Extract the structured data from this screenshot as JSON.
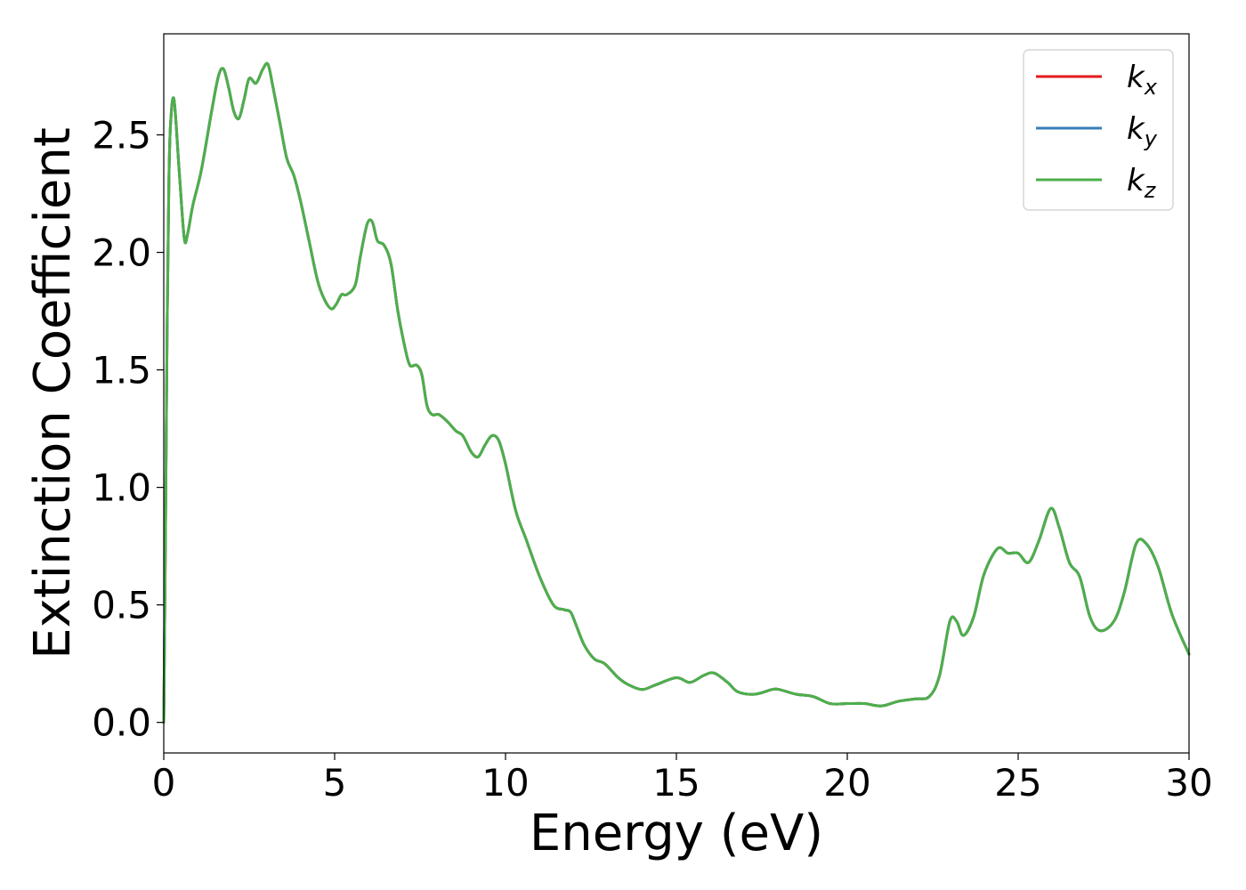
{
  "chart_data": {
    "type": "line",
    "title": "",
    "xlabel": "Energy (eV)",
    "ylabel": "Extinction Coefficient",
    "xlim": [
      0,
      30
    ],
    "ylim": [
      -0.13,
      2.93
    ],
    "xticks": [
      0,
      5,
      10,
      15,
      20,
      25,
      30
    ],
    "xtick_labels": [
      "0",
      "5",
      "10",
      "15",
      "20",
      "25",
      "30"
    ],
    "yticks": [
      0.0,
      0.5,
      1.0,
      1.5,
      2.0,
      2.5
    ],
    "ytick_labels": [
      "0.0",
      "0.5",
      "1.0",
      "1.5",
      "2.0",
      "2.5"
    ],
    "grid": false,
    "legend_position": "top-right",
    "series": [
      {
        "name": "k",
        "subscript": "x",
        "color": "#e41a1c",
        "x": [
          0,
          0.05,
          0.1,
          0.15,
          0.2,
          0.3,
          0.45,
          0.6,
          0.7,
          0.85,
          1.1,
          1.4,
          1.6,
          1.75,
          1.9,
          2.05,
          2.2,
          2.35,
          2.5,
          2.7,
          2.9,
          3.05,
          3.2,
          3.4,
          3.6,
          3.8,
          4.0,
          4.25,
          4.5,
          4.7,
          4.9,
          5.05,
          5.2,
          5.35,
          5.6,
          5.75,
          5.95,
          6.1,
          6.25,
          6.45,
          6.65,
          6.85,
          7.05,
          7.2,
          7.4,
          7.55,
          7.7,
          7.85,
          8.05,
          8.3,
          8.55,
          8.75,
          9.0,
          9.2,
          9.4,
          9.6,
          9.8,
          10.0,
          10.3,
          10.6,
          11.0,
          11.4,
          11.7,
          11.9,
          12.05,
          12.3,
          12.6,
          12.9,
          13.3,
          13.6,
          14.0,
          14.4,
          15.0,
          15.4,
          15.8,
          16.1,
          16.5,
          16.8,
          17.3,
          17.8,
          18.0,
          18.5,
          19.0,
          19.5,
          20.0,
          20.5,
          21.0,
          21.5,
          22.0,
          22.4,
          22.7,
          23.0,
          23.2,
          23.4,
          23.7,
          24.0,
          24.4,
          24.7,
          25.0,
          25.3,
          25.6,
          25.95,
          26.2,
          26.5,
          26.8,
          27.1,
          27.4,
          27.8,
          28.1,
          28.45,
          28.75,
          29.1,
          29.5,
          30.0
        ],
        "values": [
          0.0,
          0.8,
          1.7,
          2.3,
          2.55,
          2.65,
          2.35,
          2.06,
          2.08,
          2.2,
          2.35,
          2.6,
          2.75,
          2.78,
          2.7,
          2.6,
          2.57,
          2.65,
          2.74,
          2.72,
          2.78,
          2.8,
          2.7,
          2.55,
          2.4,
          2.33,
          2.22,
          2.05,
          1.88,
          1.8,
          1.76,
          1.78,
          1.82,
          1.82,
          1.86,
          1.98,
          2.12,
          2.13,
          2.05,
          2.03,
          1.95,
          1.75,
          1.6,
          1.52,
          1.52,
          1.48,
          1.35,
          1.31,
          1.31,
          1.28,
          1.24,
          1.22,
          1.15,
          1.13,
          1.18,
          1.22,
          1.2,
          1.1,
          0.9,
          0.78,
          0.62,
          0.5,
          0.48,
          0.47,
          0.42,
          0.33,
          0.27,
          0.25,
          0.19,
          0.16,
          0.14,
          0.16,
          0.19,
          0.17,
          0.2,
          0.21,
          0.17,
          0.13,
          0.12,
          0.14,
          0.14,
          0.12,
          0.11,
          0.08,
          0.08,
          0.08,
          0.07,
          0.09,
          0.1,
          0.11,
          0.2,
          0.43,
          0.43,
          0.37,
          0.45,
          0.63,
          0.74,
          0.72,
          0.72,
          0.68,
          0.77,
          0.91,
          0.83,
          0.68,
          0.62,
          0.45,
          0.39,
          0.43,
          0.55,
          0.76,
          0.76,
          0.66,
          0.46,
          0.29
        ]
      },
      {
        "name": "k",
        "subscript": "y",
        "color": "#377eb8",
        "x": [
          0,
          0.05,
          0.1,
          0.15,
          0.2,
          0.3,
          0.45,
          0.6,
          0.7,
          0.85,
          1.1,
          1.4,
          1.6,
          1.75,
          1.9,
          2.05,
          2.2,
          2.35,
          2.5,
          2.7,
          2.9,
          3.05,
          3.2,
          3.4,
          3.6,
          3.8,
          4.0,
          4.25,
          4.5,
          4.7,
          4.9,
          5.05,
          5.2,
          5.35,
          5.6,
          5.75,
          5.95,
          6.1,
          6.25,
          6.45,
          6.65,
          6.85,
          7.05,
          7.2,
          7.4,
          7.55,
          7.7,
          7.85,
          8.05,
          8.3,
          8.55,
          8.75,
          9.0,
          9.2,
          9.4,
          9.6,
          9.8,
          10.0,
          10.3,
          10.6,
          11.0,
          11.4,
          11.7,
          11.9,
          12.05,
          12.3,
          12.6,
          12.9,
          13.3,
          13.6,
          14.0,
          14.4,
          15.0,
          15.4,
          15.8,
          16.1,
          16.5,
          16.8,
          17.3,
          17.8,
          18.0,
          18.5,
          19.0,
          19.5,
          20.0,
          20.5,
          21.0,
          21.5,
          22.0,
          22.4,
          22.7,
          23.0,
          23.2,
          23.4,
          23.7,
          24.0,
          24.4,
          24.7,
          25.0,
          25.3,
          25.6,
          25.95,
          26.2,
          26.5,
          26.8,
          27.1,
          27.4,
          27.8,
          28.1,
          28.45,
          28.75,
          29.1,
          29.5,
          30.0
        ],
        "values": [
          0.0,
          0.8,
          1.7,
          2.3,
          2.55,
          2.65,
          2.35,
          2.06,
          2.08,
          2.2,
          2.35,
          2.6,
          2.75,
          2.78,
          2.7,
          2.6,
          2.57,
          2.65,
          2.74,
          2.72,
          2.78,
          2.8,
          2.7,
          2.55,
          2.4,
          2.33,
          2.22,
          2.05,
          1.88,
          1.8,
          1.76,
          1.78,
          1.82,
          1.82,
          1.86,
          1.98,
          2.12,
          2.13,
          2.05,
          2.03,
          1.95,
          1.75,
          1.6,
          1.52,
          1.52,
          1.48,
          1.35,
          1.31,
          1.31,
          1.28,
          1.24,
          1.22,
          1.15,
          1.13,
          1.18,
          1.22,
          1.2,
          1.1,
          0.9,
          0.78,
          0.62,
          0.5,
          0.48,
          0.47,
          0.42,
          0.33,
          0.27,
          0.25,
          0.19,
          0.16,
          0.14,
          0.16,
          0.19,
          0.17,
          0.2,
          0.21,
          0.17,
          0.13,
          0.12,
          0.14,
          0.14,
          0.12,
          0.11,
          0.08,
          0.08,
          0.08,
          0.07,
          0.09,
          0.1,
          0.11,
          0.2,
          0.43,
          0.43,
          0.37,
          0.45,
          0.63,
          0.74,
          0.72,
          0.72,
          0.68,
          0.77,
          0.91,
          0.83,
          0.68,
          0.62,
          0.45,
          0.39,
          0.43,
          0.55,
          0.76,
          0.76,
          0.66,
          0.46,
          0.29
        ]
      },
      {
        "name": "k",
        "subscript": "z",
        "color": "#4daf4a",
        "x": [
          0,
          0.05,
          0.1,
          0.15,
          0.2,
          0.3,
          0.45,
          0.6,
          0.7,
          0.85,
          1.1,
          1.4,
          1.6,
          1.75,
          1.9,
          2.05,
          2.2,
          2.35,
          2.5,
          2.7,
          2.9,
          3.05,
          3.2,
          3.4,
          3.6,
          3.8,
          4.0,
          4.25,
          4.5,
          4.7,
          4.9,
          5.05,
          5.2,
          5.35,
          5.6,
          5.75,
          5.95,
          6.1,
          6.25,
          6.45,
          6.65,
          6.85,
          7.05,
          7.2,
          7.4,
          7.55,
          7.7,
          7.85,
          8.05,
          8.3,
          8.55,
          8.75,
          9.0,
          9.2,
          9.4,
          9.6,
          9.8,
          10.0,
          10.3,
          10.6,
          11.0,
          11.4,
          11.7,
          11.9,
          12.05,
          12.3,
          12.6,
          12.9,
          13.3,
          13.6,
          14.0,
          14.4,
          15.0,
          15.4,
          15.8,
          16.1,
          16.5,
          16.8,
          17.3,
          17.8,
          18.0,
          18.5,
          19.0,
          19.5,
          20.0,
          20.5,
          21.0,
          21.5,
          22.0,
          22.4,
          22.7,
          23.0,
          23.2,
          23.4,
          23.7,
          24.0,
          24.4,
          24.7,
          25.0,
          25.3,
          25.6,
          25.95,
          26.2,
          26.5,
          26.8,
          27.1,
          27.4,
          27.8,
          28.1,
          28.45,
          28.75,
          29.1,
          29.5,
          30.0
        ],
        "values": [
          0.0,
          0.8,
          1.7,
          2.3,
          2.55,
          2.65,
          2.35,
          2.06,
          2.08,
          2.2,
          2.35,
          2.6,
          2.75,
          2.78,
          2.7,
          2.6,
          2.57,
          2.65,
          2.74,
          2.72,
          2.78,
          2.8,
          2.7,
          2.55,
          2.4,
          2.33,
          2.22,
          2.05,
          1.88,
          1.8,
          1.76,
          1.78,
          1.82,
          1.82,
          1.86,
          1.98,
          2.12,
          2.13,
          2.05,
          2.03,
          1.95,
          1.75,
          1.6,
          1.52,
          1.52,
          1.48,
          1.35,
          1.31,
          1.31,
          1.28,
          1.24,
          1.22,
          1.15,
          1.13,
          1.18,
          1.22,
          1.2,
          1.1,
          0.9,
          0.78,
          0.62,
          0.5,
          0.48,
          0.47,
          0.42,
          0.33,
          0.27,
          0.25,
          0.19,
          0.16,
          0.14,
          0.16,
          0.19,
          0.17,
          0.2,
          0.21,
          0.17,
          0.13,
          0.12,
          0.14,
          0.14,
          0.12,
          0.11,
          0.08,
          0.08,
          0.08,
          0.07,
          0.09,
          0.1,
          0.11,
          0.2,
          0.43,
          0.43,
          0.37,
          0.45,
          0.63,
          0.74,
          0.72,
          0.72,
          0.68,
          0.77,
          0.91,
          0.83,
          0.68,
          0.62,
          0.45,
          0.39,
          0.43,
          0.55,
          0.76,
          0.76,
          0.66,
          0.46,
          0.29
        ]
      }
    ]
  }
}
